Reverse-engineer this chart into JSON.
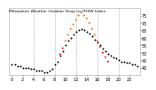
{
  "title": "Milwaukee Weather Outdoor Temp vs THSW Index",
  "background_color": "#ffffff",
  "plot_bg_color": "#ffffff",
  "grid_color": "#aaaaaa",
  "x_hours": [
    0,
    0.5,
    1,
    1.5,
    2,
    2.5,
    3,
    3.5,
    4,
    4.5,
    5,
    5.5,
    6,
    6.5,
    7,
    7.5,
    8,
    8.5,
    9,
    9.5,
    10,
    10.5,
    11,
    11.5,
    12,
    12.5,
    13,
    13.5,
    14,
    14.5,
    15,
    15.5,
    16,
    16.5,
    17,
    17.5,
    18,
    18.5,
    19,
    19.5,
    20,
    20.5,
    21,
    21.5,
    22,
    22.5,
    23,
    23.5
  ],
  "temp_values": [
    42,
    42,
    41,
    41,
    40,
    40,
    40,
    39,
    39,
    38,
    38,
    38,
    37,
    37,
    38,
    39,
    42,
    44,
    48,
    51,
    55,
    58,
    60,
    62,
    64,
    65,
    66,
    65,
    64,
    63,
    61,
    59,
    57,
    55,
    53,
    51,
    49,
    48,
    47,
    46,
    45,
    44,
    44,
    43,
    43,
    42,
    42,
    41
  ],
  "thsw_values": [
    null,
    null,
    null,
    null,
    null,
    null,
    null,
    null,
    null,
    null,
    null,
    null,
    null,
    null,
    null,
    null,
    null,
    null,
    49,
    53,
    58,
    62,
    66,
    69,
    72,
    75,
    77,
    75,
    73,
    70,
    66,
    62,
    58,
    54,
    50,
    47,
    44,
    null,
    null,
    null,
    null,
    null,
    null,
    null,
    null,
    null,
    null,
    null
  ],
  "temp_color": "#000000",
  "thsw_color_high": "#ff6600",
  "thsw_color_low": "#ff0000",
  "temp_dot_color": "#cc0000",
  "ylim": [
    35,
    80
  ],
  "yticks": [
    40,
    45,
    50,
    55,
    60,
    65,
    70,
    75
  ],
  "ytick_labels": [
    "40",
    "45",
    "50",
    "55",
    "60",
    "65",
    "70",
    "75"
  ],
  "xtick_positions": [
    0,
    2,
    4,
    6,
    8,
    10,
    12,
    14,
    16,
    18,
    20,
    22
  ],
  "xtick_labels": [
    "0",
    "2",
    "4",
    "6",
    "8",
    "10",
    "12",
    "14",
    "16",
    "18",
    "20",
    "22"
  ],
  "grid_x_positions": [
    4,
    8,
    12,
    16,
    20
  ],
  "dot_size": 2,
  "title_color": "#000000",
  "tick_color": "#000000",
  "title_fontsize": 3.2,
  "tick_fontsize": 3.5,
  "xlim": [
    -0.5,
    24
  ]
}
